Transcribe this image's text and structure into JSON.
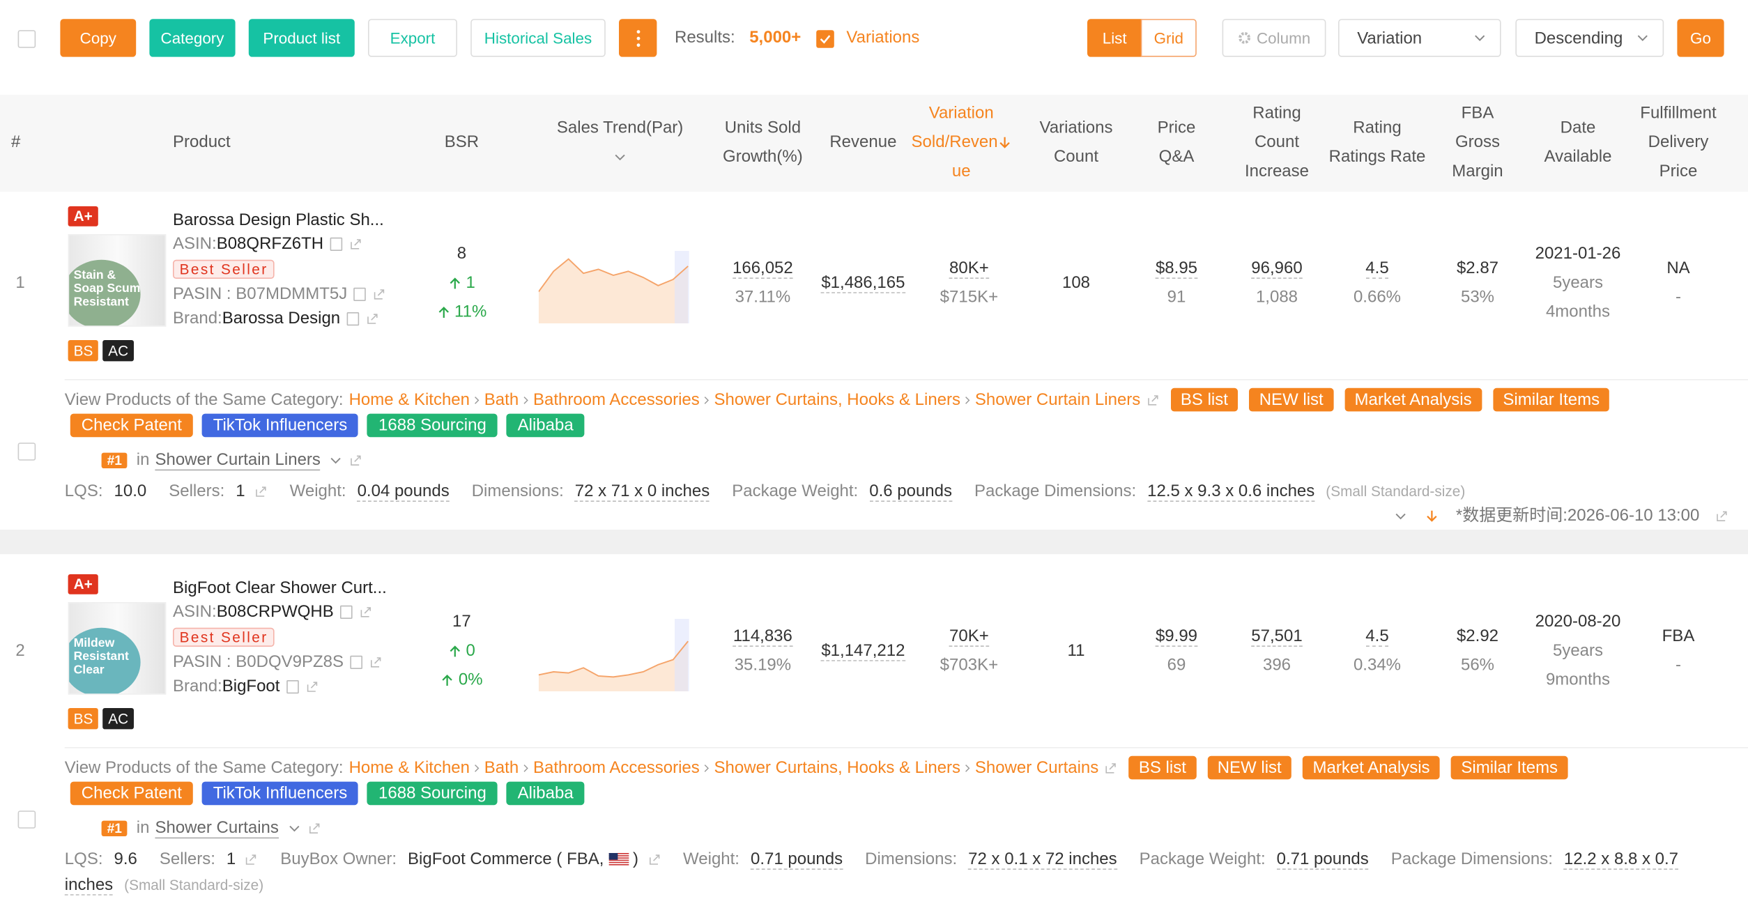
{
  "toolbar": {
    "buttons": [
      "Copy",
      "Category",
      "Product list",
      "Export",
      "Historical Sales"
    ],
    "results_label": "Results:",
    "results_value": "5,000+",
    "variations": "Variations",
    "view": [
      "List",
      "Grid"
    ],
    "column": "Column",
    "sort_field": "Variation",
    "sort_order": "Descending",
    "go": "Go"
  },
  "table": {
    "columns": [
      {
        "lines": [
          "#"
        ]
      },
      {
        "lines": [
          "Product"
        ]
      },
      {
        "lines": [
          "BSR"
        ]
      },
      {
        "lines": [
          "Sales Trend(Par)"
        ]
      },
      {
        "lines": [
          "Units Sold",
          "Growth(%)"
        ]
      },
      {
        "lines": [
          "Revenue"
        ]
      },
      {
        "lines": [
          "Variation",
          "Sold/Reven",
          "ue"
        ]
      },
      {
        "lines": [
          "Variations",
          "Count"
        ]
      },
      {
        "lines": [
          "Price",
          "Q&A"
        ]
      },
      {
        "lines": [
          "Rating",
          "Count",
          "Increase"
        ]
      },
      {
        "lines": [
          "Rating",
          "Ratings Rate"
        ]
      },
      {
        "lines": [
          "FBA",
          "Gross",
          "Margin"
        ]
      },
      {
        "lines": [
          "Date",
          "Available"
        ]
      },
      {
        "lines": [
          "Fulfillment",
          "Delivery",
          "Price"
        ]
      }
    ]
  },
  "products": [
    {
      "rank": "1",
      "badge": "A+",
      "image_text": [
        "Stain &",
        "Soap Scum",
        "Resistant"
      ],
      "title": "Barossa Design Plastic Sh...",
      "asin_label": "ASIN:",
      "asin": "B08QRFZ6TH",
      "best_seller": "Best Seller",
      "pasin_label": "PASIN : ",
      "pasin": "B07MDMMT5J",
      "brand_label": "Brand:",
      "brand": "Barossa Design",
      "tags": [
        "BS",
        "AC"
      ],
      "bsr": "8",
      "bsr_change": "1",
      "bsr_pct": "11%",
      "trend": [
        30,
        50,
        62,
        48,
        52,
        46,
        50,
        44,
        36,
        42,
        55
      ],
      "trend_ylim": [
        0,
        70
      ],
      "units": "166,052",
      "growth": "37.11%",
      "revenue": "$1,486,165",
      "variation_sold": "80K+",
      "variation_revenue": "$715K+",
      "variations_count": "108",
      "price": "$8.95",
      "qa": "91",
      "rating_count": "96,960",
      "rating_increase": "1,088",
      "rating": "4.5",
      "ratings_rate": "0.66%",
      "fba": "$2.87",
      "margin": "53%",
      "date": "2021-01-26",
      "age": [
        "5years",
        "4months"
      ],
      "fulfillment": "NA",
      "delivery": "-",
      "category": {
        "label": "View Products of the Same Category:",
        "path": [
          "Home & Kitchen",
          "Bath",
          "Bathroom Accessories",
          "Shower Curtains, Hooks & Liners",
          "Shower Curtain Liners"
        ],
        "buttons": [
          "BS list",
          "NEW list",
          "Market Analysis",
          "Similar Items"
        ],
        "tools": [
          "Check Patent",
          "TikTok Influencers",
          "1688 Sourcing",
          "Alibaba"
        ],
        "rank": "#1",
        "in": "in",
        "name": "Shower Curtain Liners"
      },
      "details": [
        {
          "label": "LQS:",
          "value": "10.0"
        },
        {
          "label": "Sellers:",
          "value": "1"
        },
        {
          "label": "Weight:",
          "value": "0.04 pounds"
        },
        {
          "label": "Dimensions:",
          "value": "72 x 71 x 0 inches"
        },
        {
          "label": "Package Weight:",
          "value": "0.6 pounds"
        },
        {
          "label": "Package Dimensions:",
          "value": "12.5 x 9.3 x 0.6 inches"
        }
      ],
      "size_note": "(Small Standard-size)",
      "updated": "*数据更新时间:2026-06-10 13:00"
    },
    {
      "rank": "2",
      "badge": "A+",
      "image_text": [
        "Mildew",
        "Resistant",
        "Clear"
      ],
      "title": "BigFoot Clear Shower Curt...",
      "asin_label": "ASIN:",
      "asin": "B08CRPWQHB",
      "best_seller": "Best Seller",
      "pasin_label": "PASIN : ",
      "pasin": "B0DQV9PZ8S",
      "brand_label": "Brand:",
      "brand": "BigFoot",
      "tags": [
        "BS",
        "AC"
      ],
      "bsr": "17",
      "bsr_change": "0",
      "bsr_pct": "0%",
      "trend": [
        15,
        18,
        17,
        22,
        14,
        13,
        15,
        18,
        25,
        30,
        48
      ],
      "trend_ylim": [
        0,
        70
      ],
      "units": "114,836",
      "growth": "35.19%",
      "revenue": "$1,147,212",
      "variation_sold": "70K+",
      "variation_revenue": "$703K+",
      "variations_count": "11",
      "price": "$9.99",
      "qa": "69",
      "rating_count": "57,501",
      "rating_increase": "396",
      "rating": "4.5",
      "ratings_rate": "0.34%",
      "fba": "$2.92",
      "margin": "56%",
      "date": "2020-08-20",
      "age": [
        "5years",
        "9months"
      ],
      "fulfillment": "FBA",
      "delivery": "-",
      "category": {
        "label": "View Products of the Same Category:",
        "path": [
          "Home & Kitchen",
          "Bath",
          "Bathroom Accessories",
          "Shower Curtains, Hooks & Liners",
          "Shower Curtains"
        ],
        "buttons": [
          "BS list",
          "NEW list",
          "Market Analysis",
          "Similar Items"
        ],
        "tools": [
          "Check Patent",
          "TikTok Influencers",
          "1688 Sourcing",
          "Alibaba"
        ],
        "rank": "#1",
        "in": "in",
        "name": "Shower Curtains"
      },
      "details": [
        {
          "label": "LQS:",
          "value": "9.6"
        },
        {
          "label": "Sellers:",
          "value": "1"
        },
        {
          "label": "BuyBox Owner:",
          "value": "BigFoot Commerce ( FBA,",
          "suffix": ")"
        },
        {
          "label": "Weight:",
          "value": "0.71 pounds"
        },
        {
          "label": "Dimensions:",
          "value": "72 x 0.1 x 72 inches"
        },
        {
          "label": "Package Weight:",
          "value": "0.71 pounds"
        },
        {
          "label": "Package Dimensions:",
          "value": "12.2 x 8.8 x 0.7 inches"
        }
      ],
      "size_note": "(Small Standard-size)"
    }
  ]
}
